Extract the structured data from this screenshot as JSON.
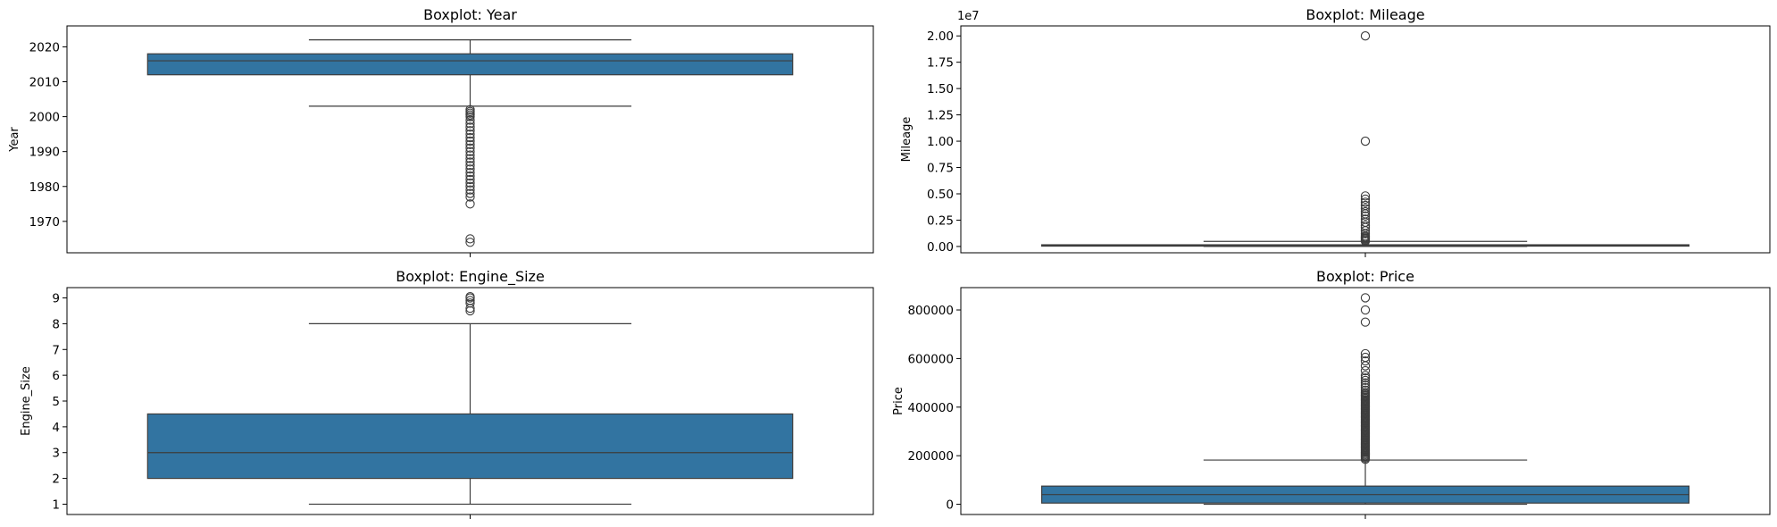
{
  "colors": {
    "box_fill": "#3274a1",
    "line": "#3d3d3d",
    "axes_edge": "#000000",
    "background": "#ffffff"
  },
  "chart_data": [
    {
      "type": "boxplot",
      "title": "Boxplot: Year",
      "ylabel": "Year",
      "ylim": [
        1961,
        2026
      ],
      "yticks": [
        1970,
        1980,
        1990,
        2000,
        2010,
        2020
      ],
      "ytick_labels": [
        "1970",
        "1980",
        "1990",
        "2000",
        "2010",
        "2020"
      ],
      "offset_label": "",
      "stats": {
        "whisker_low": 2003,
        "q1": 2012,
        "median": 2016,
        "q3": 2018,
        "whisker_high": 2022
      },
      "outliers": [
        2002,
        2001.5,
        2001,
        2000.5,
        2000,
        1999,
        1998,
        1997,
        1996,
        1995,
        1994,
        1993,
        1992,
        1991,
        1990,
        1989,
        1988,
        1987,
        1986,
        1985,
        1984,
        1983,
        1982,
        1981,
        1980,
        1979,
        1978,
        1977,
        1975,
        1965,
        1964
      ]
    },
    {
      "type": "boxplot",
      "title": "Boxplot: Mileage",
      "ylabel": "Mileage",
      "ylim": [
        -600000,
        20950000
      ],
      "yticks": [
        0,
        2500000,
        5000000,
        7500000,
        10000000,
        12500000,
        15000000,
        17500000,
        20000000
      ],
      "ytick_labels": [
        "0.00",
        "0.25",
        "0.50",
        "0.75",
        "1.00",
        "1.25",
        "1.50",
        "1.75",
        "2.00"
      ],
      "offset_label": "1e7",
      "stats": {
        "whisker_low": 0,
        "q1": 60000,
        "median": 110000,
        "q3": 160000,
        "whisker_high": 480000
      },
      "outliers": [
        500000,
        600000,
        700000,
        800000,
        900000,
        1000000,
        1200000,
        1500000,
        1800000,
        2000000,
        2300000,
        2600000,
        2900000,
        3100000,
        3300000,
        3600000,
        3900000,
        4200000,
        4500000,
        4800000,
        10000000,
        20000000
      ]
    },
    {
      "type": "boxplot",
      "title": "Boxplot: Engine_Size",
      "ylabel": "Engine_Size",
      "ylim": [
        0.6,
        9.4
      ],
      "yticks": [
        1,
        2,
        3,
        4,
        5,
        6,
        7,
        8,
        9
      ],
      "ytick_labels": [
        "1",
        "2",
        "3",
        "4",
        "5",
        "6",
        "7",
        "8",
        "9"
      ],
      "offset_label": "",
      "stats": {
        "whisker_low": 1,
        "q1": 2,
        "median": 3,
        "q3": 4.5,
        "whisker_high": 8
      },
      "outliers": [
        8.5,
        8.6,
        8.8,
        8.9,
        9.0,
        9.05
      ]
    },
    {
      "type": "boxplot",
      "title": "Boxplot: Price",
      "ylabel": "Price",
      "ylim": [
        -42000,
        892000
      ],
      "yticks": [
        0,
        200000,
        400000,
        600000,
        800000
      ],
      "ytick_labels": [
        "0",
        "200000",
        "400000",
        "600000",
        "800000"
      ],
      "offset_label": "",
      "stats": {
        "whisker_low": 0,
        "q1": 5000,
        "median": 40000,
        "q3": 75000,
        "whisker_high": 182000
      },
      "outliers": [
        185000,
        190000,
        195000,
        200000,
        205000,
        210000,
        215000,
        220000,
        225000,
        230000,
        235000,
        240000,
        245000,
        250000,
        255000,
        260000,
        265000,
        270000,
        275000,
        280000,
        285000,
        290000,
        295000,
        300000,
        305000,
        310000,
        315000,
        320000,
        325000,
        330000,
        335000,
        340000,
        345000,
        350000,
        355000,
        360000,
        365000,
        370000,
        375000,
        380000,
        385000,
        390000,
        395000,
        400000,
        405000,
        410000,
        415000,
        420000,
        425000,
        430000,
        435000,
        440000,
        445000,
        450000,
        455000,
        460000,
        470000,
        480000,
        490000,
        500000,
        510000,
        520000,
        530000,
        550000,
        570000,
        590000,
        605000,
        620000,
        750000,
        800000,
        850000
      ]
    }
  ]
}
